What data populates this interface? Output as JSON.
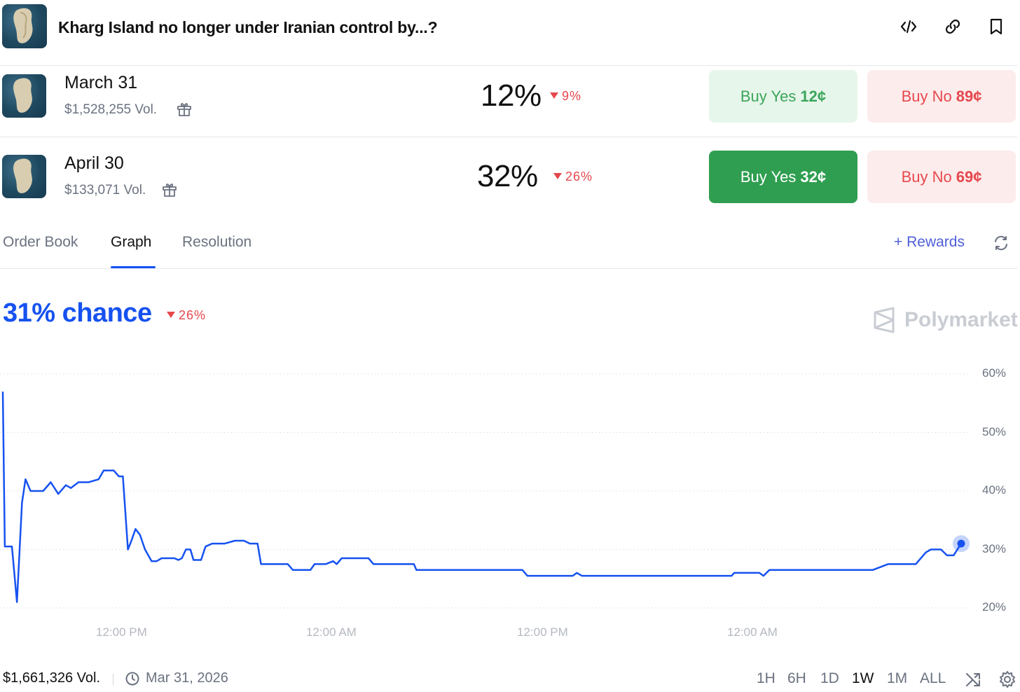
{
  "header": {
    "title": "Kharg Island no longer under Iranian control by...?",
    "icons": [
      "embed-icon",
      "link-icon",
      "bookmark-icon"
    ]
  },
  "markets": [
    {
      "label": "March 31",
      "volume": "$1,528,255 Vol.",
      "percent": "12%",
      "change": "9%",
      "yes_label": "Buy Yes",
      "yes_price": "12¢",
      "no_label": "Buy No",
      "no_price": "89¢"
    },
    {
      "label": "April 30",
      "volume": "$133,071 Vol.",
      "percent": "32%",
      "change": "26%",
      "yes_label": "Buy Yes",
      "yes_price": "32¢",
      "no_label": "Buy No",
      "no_price": "69¢"
    }
  ],
  "tabs": {
    "order_book": "Order Book",
    "graph": "Graph",
    "resolution": "Resolution",
    "active": "Graph"
  },
  "rewards": {
    "plus": "+",
    "label": "Rewards"
  },
  "graph": {
    "chance": "31% chance",
    "change": "26%",
    "brand": "Polymarket"
  },
  "chart_data": {
    "type": "line",
    "series": [
      {
        "name": "",
        "color": "#1652f0",
        "points": [
          [
            0,
            57
          ],
          [
            0.04,
            30.5
          ],
          [
            0.18,
            30.5
          ],
          [
            0.28,
            21
          ],
          [
            0.38,
            38
          ],
          [
            0.45,
            42
          ],
          [
            0.55,
            40
          ],
          [
            0.8,
            40
          ],
          [
            0.95,
            41.5
          ],
          [
            1.1,
            39.5
          ],
          [
            1.25,
            41
          ],
          [
            1.35,
            40.5
          ],
          [
            1.5,
            41.5
          ],
          [
            1.7,
            41.5
          ],
          [
            1.9,
            42
          ],
          [
            2.0,
            43.5
          ],
          [
            2.2,
            43.5
          ],
          [
            2.3,
            42.5
          ],
          [
            2.38,
            42.5
          ],
          [
            2.48,
            30
          ],
          [
            2.55,
            31.5
          ],
          [
            2.63,
            33.5
          ],
          [
            2.72,
            32.5
          ],
          [
            2.82,
            30
          ],
          [
            2.95,
            28
          ],
          [
            3.05,
            28
          ],
          [
            3.15,
            28.5
          ],
          [
            3.4,
            28.5
          ],
          [
            3.48,
            28.2
          ],
          [
            3.55,
            28.5
          ],
          [
            3.63,
            30
          ],
          [
            3.72,
            30
          ],
          [
            3.78,
            28.2
          ],
          [
            3.93,
            28.2
          ],
          [
            4.02,
            30.5
          ],
          [
            4.15,
            31
          ],
          [
            4.4,
            31
          ],
          [
            4.6,
            31.5
          ],
          [
            4.78,
            31.5
          ],
          [
            4.9,
            31
          ],
          [
            5.05,
            31
          ],
          [
            5.12,
            27.5
          ],
          [
            5.65,
            27.5
          ],
          [
            5.75,
            26.5
          ],
          [
            6.1,
            26.5
          ],
          [
            6.18,
            27.5
          ],
          [
            6.4,
            27.5
          ],
          [
            6.55,
            28
          ],
          [
            6.62,
            27.5
          ],
          [
            6.72,
            28.5
          ],
          [
            7.25,
            28.5
          ],
          [
            7.35,
            27.5
          ],
          [
            8.15,
            27.5
          ],
          [
            8.2,
            26.5
          ],
          [
            10.3,
            26.5
          ],
          [
            10.4,
            25.5
          ],
          [
            11.3,
            25.5
          ],
          [
            11.38,
            26
          ],
          [
            11.48,
            25.5
          ],
          [
            14.45,
            25.5
          ],
          [
            14.5,
            26
          ],
          [
            15.0,
            26
          ],
          [
            15.08,
            25.5
          ],
          [
            15.2,
            26.5
          ],
          [
            17.25,
            26.5
          ],
          [
            17.4,
            27
          ],
          [
            17.55,
            27.5
          ],
          [
            18.1,
            27.5
          ],
          [
            18.3,
            29.5
          ],
          [
            18.4,
            30
          ],
          [
            18.6,
            30
          ],
          [
            18.72,
            29
          ],
          [
            18.85,
            29
          ],
          [
            19.0,
            31
          ]
        ]
      }
    ],
    "ylim": [
      20,
      60
    ],
    "ytick_labels": [
      "60%",
      "50%",
      "40%",
      "30%",
      "20%"
    ],
    "xtick_labels": [
      "12:00 PM",
      "12:00 AM",
      "12:00 PM",
      "12:00 AM"
    ],
    "grid": true,
    "current_value": 31
  },
  "footer": {
    "volume": "$1,661,326 Vol.",
    "date": "Mar 31, 2026",
    "ranges": [
      "1H",
      "6H",
      "1D",
      "1W",
      "1M",
      "ALL"
    ],
    "active_range": "1W"
  }
}
